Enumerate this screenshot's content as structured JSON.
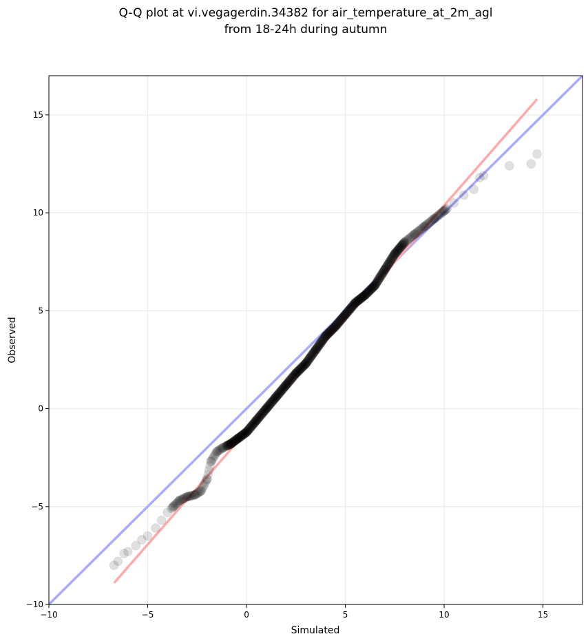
{
  "chart_data": {
    "type": "scatter",
    "title": [
      "Q-Q plot at vi.vegagerdin.34382 for air_temperature_at_2m_agl",
      "from 18-24h during autumn"
    ],
    "xlabel": "Simulated",
    "ylabel": "Observed",
    "xlim": [
      -10,
      17
    ],
    "ylim": [
      -10,
      17
    ],
    "xticks": [
      -10,
      -5,
      0,
      5,
      10,
      15
    ],
    "yticks": [
      -10,
      -5,
      0,
      5,
      10,
      15
    ],
    "xtick_labels": [
      "−10",
      "−5",
      "0",
      "5",
      "10",
      "15"
    ],
    "ytick_labels": [
      "−10",
      "−5",
      "0",
      "5",
      "10",
      "15"
    ],
    "grid": true,
    "reference_lines": [
      {
        "role": "identity",
        "color": "#aaaaff",
        "x": [
          -10,
          17
        ],
        "y": [
          -10,
          17
        ]
      },
      {
        "role": "fit",
        "color": "#ffaaaa",
        "x": [
          -6.7,
          14.7
        ],
        "y": [
          -8.9,
          15.8
        ]
      }
    ],
    "qq_curve": {
      "x": [
        -6.7,
        -6.5,
        -6.2,
        -6.0,
        -5.6,
        -5.3,
        -5.0,
        -4.6,
        -4.3,
        -4.0,
        -3.7,
        -3.4,
        -3.0,
        -2.6,
        -2.3,
        -2.0,
        -1.8,
        -1.5,
        -1.2,
        -0.8,
        -0.4,
        0.0,
        0.5,
        1.0,
        1.5,
        2.0,
        2.5,
        3.0,
        3.5,
        4.0,
        4.5,
        5.0,
        5.5,
        6.0,
        6.5,
        7.0,
        7.5,
        8.0,
        8.5,
        9.0,
        9.5,
        10.0,
        10.5,
        11.0,
        11.5,
        11.8,
        12.0,
        13.3,
        14.4,
        14.7
      ],
      "y": [
        -8.0,
        -7.8,
        -7.4,
        -7.3,
        -7.0,
        -6.7,
        -6.5,
        -6.1,
        -5.7,
        -5.3,
        -5.0,
        -4.7,
        -4.5,
        -4.4,
        -4.2,
        -3.6,
        -2.7,
        -2.2,
        -2.0,
        -1.8,
        -1.5,
        -1.2,
        -0.6,
        0.0,
        0.6,
        1.2,
        1.8,
        2.3,
        3.0,
        3.7,
        4.2,
        4.8,
        5.4,
        5.8,
        6.3,
        7.1,
        7.9,
        8.5,
        8.9,
        9.3,
        9.7,
        10.1,
        10.5,
        10.9,
        11.2,
        11.8,
        11.9,
        12.4,
        12.5,
        13.0
      ]
    }
  }
}
